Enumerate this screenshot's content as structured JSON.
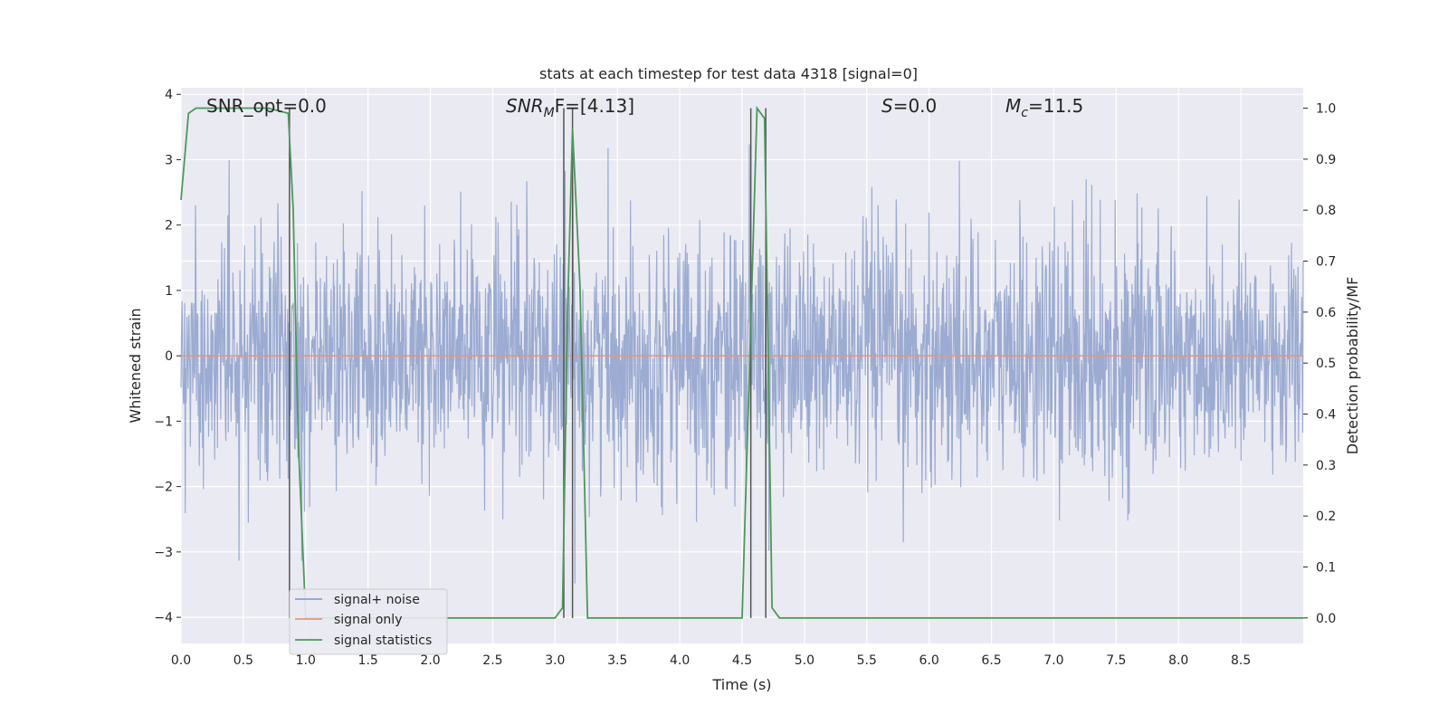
{
  "chart_data": {
    "type": "line",
    "title": "stats at each timestep for test data 4318 [signal=0]",
    "xlabel": "Time (s)",
    "ylabel": "Whitened strain",
    "y2label": "Detection probability/MF",
    "xlim": [
      0.0,
      9.0
    ],
    "ylim": [
      -4.4,
      4.1
    ],
    "y2lim": [
      -0.05,
      1.04
    ],
    "x_ticks": [
      0.0,
      0.5,
      1.0,
      1.5,
      2.0,
      2.5,
      3.0,
      3.5,
      4.0,
      4.5,
      5.0,
      5.5,
      6.0,
      6.5,
      7.0,
      7.5,
      8.0,
      8.5
    ],
    "x_tick_labels": [
      "0.0",
      "0.5",
      "1.0",
      "1.5",
      "2.0",
      "2.5",
      "3.0",
      "3.5",
      "4.0",
      "4.5",
      "5.0",
      "5.5",
      "6.0",
      "6.5",
      "7.0",
      "7.5",
      "8.0",
      "8.5"
    ],
    "y_ticks": [
      -4,
      -3,
      -2,
      -1,
      0,
      1,
      2,
      3,
      4
    ],
    "y_tick_labels": [
      "−4",
      "−3",
      "−2",
      "−1",
      "0",
      "1",
      "2",
      "3",
      "4"
    ],
    "y2_ticks": [
      0.0,
      0.1,
      0.2,
      0.3,
      0.4,
      0.5,
      0.6,
      0.7,
      0.8,
      0.9,
      1.0
    ],
    "y2_tick_labels": [
      "0.0",
      "0.1",
      "0.2",
      "0.3",
      "0.4",
      "0.5",
      "0.6",
      "0.7",
      "0.8",
      "0.9",
      "1.0"
    ],
    "grid": true,
    "legend_position": "lower-left",
    "annotations": {
      "snr_opt": "SNR_opt=0.0",
      "snr_mf_main": "SNR",
      "snr_mf_sub": "M",
      "snr_mf_rest": "F=[4.13]",
      "s_italic": "S",
      "s_rest": "=0.0",
      "mc_main": "M",
      "mc_sub": "c",
      "mc_rest": "=11.5"
    },
    "series": [
      {
        "name": "signal+ noise",
        "color": "#8da0cb",
        "noise_std": 0.95,
        "x_range": [
          0.0,
          9.0
        ]
      },
      {
        "name": "signal only",
        "color": "#e5957a",
        "x": [
          0.0,
          9.0
        ],
        "y": [
          0.0,
          0.0
        ]
      },
      {
        "name": "signal statistics",
        "color": "#4c9a5a",
        "axis": "right",
        "x": [
          0.0,
          0.06,
          0.12,
          0.2,
          0.3,
          0.5,
          0.7,
          0.86,
          0.9,
          0.94,
          1.0,
          1.1,
          1.5,
          2.0,
          2.5,
          3.0,
          3.06,
          3.1,
          3.14,
          3.2,
          3.26,
          3.5,
          4.0,
          4.5,
          4.56,
          4.62,
          4.68,
          4.74,
          4.8,
          5.0,
          6.0,
          7.0,
          8.0,
          9.0
        ],
        "y": [
          0.82,
          0.99,
          1.0,
          1.0,
          1.0,
          1.0,
          1.0,
          0.99,
          0.8,
          0.35,
          0.0,
          0.0,
          0.0,
          0.0,
          0.0,
          0.0,
          0.02,
          0.6,
          0.96,
          0.65,
          0.0,
          0.0,
          0.0,
          0.0,
          0.5,
          1.0,
          0.98,
          0.02,
          0.0,
          0.0,
          0.0,
          0.0,
          0.0,
          0.0
        ]
      }
    ],
    "vertical_lines": [
      0.87,
      3.07,
      3.14,
      4.57,
      4.69
    ],
    "vertical_line_color": "#555555",
    "horizontal_lines_right": [
      0.5,
      0.6,
      0.7
    ]
  }
}
